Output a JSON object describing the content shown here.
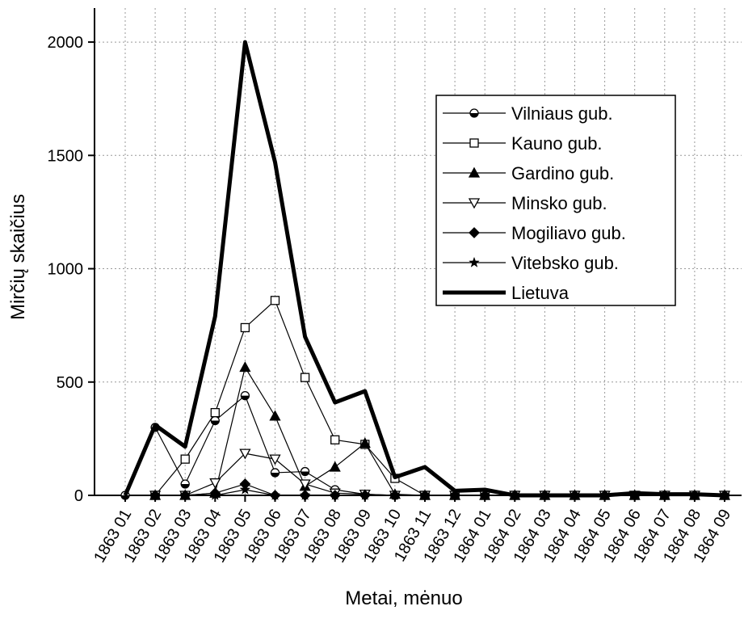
{
  "chart_data": {
    "type": "line",
    "x_label": "Metai, mėnuo",
    "y_label": "Mirčių skaičius",
    "categories": [
      "1863 01",
      "1863 02",
      "1863 03",
      "1863 04",
      "1863 05",
      "1863 06",
      "1863 07",
      "1863 08",
      "1863 09",
      "1863 10",
      "1863 11",
      "1863 12",
      "1864 01",
      "1864 02",
      "1864 03",
      "1864 04",
      "1864 05",
      "1864 06",
      "1864 07",
      "1864 08",
      "1864 09"
    ],
    "series": [
      {
        "name": "Vilniaus gub.",
        "color": "#000000",
        "marker": "half-circle",
        "values": [
          0,
          300,
          50,
          330,
          440,
          100,
          105,
          25,
          5,
          0,
          0,
          0,
          0,
          0,
          0,
          0,
          0,
          0,
          0,
          0,
          0
        ]
      },
      {
        "name": "Kauno gub.",
        "color": "#000000",
        "marker": "square",
        "values": [
          null,
          0,
          160,
          365,
          740,
          860,
          520,
          245,
          225,
          75,
          0,
          0,
          0,
          0,
          0,
          0,
          0,
          0,
          0,
          0,
          0
        ]
      },
      {
        "name": "Gardino gub.",
        "color": "#000000",
        "marker": "triangle",
        "values": [
          null,
          0,
          0,
          10,
          565,
          350,
          40,
          125,
          230,
          5,
          0,
          0,
          0,
          0,
          0,
          0,
          0,
          0,
          0,
          0,
          0
        ]
      },
      {
        "name": "Minsko gub.",
        "color": "#000000",
        "marker": "triangle-down",
        "values": [
          null,
          0,
          0,
          55,
          185,
          160,
          50,
          10,
          5,
          0,
          0,
          0,
          0,
          0,
          0,
          0,
          0,
          0,
          0,
          0,
          0
        ]
      },
      {
        "name": "Mogiliavo gub.",
        "color": "#000000",
        "marker": "diamond",
        "values": [
          null,
          0,
          0,
          10,
          50,
          0,
          0,
          0,
          0,
          0,
          0,
          0,
          0,
          0,
          0,
          0,
          0,
          0,
          0,
          0,
          0
        ]
      },
      {
        "name": "Vitebsko gub.",
        "color": "#000000",
        "marker": "star",
        "values": [
          null,
          0,
          0,
          0,
          25,
          0,
          0,
          0,
          0,
          0,
          0,
          0,
          0,
          0,
          0,
          0,
          0,
          0,
          0,
          0,
          0
        ]
      },
      {
        "name": "Lietuva",
        "color": "#000000",
        "marker": "none",
        "width": 5,
        "values": [
          0,
          310,
          215,
          790,
          2000,
          1470,
          700,
          410,
          460,
          80,
          125,
          20,
          25,
          0,
          0,
          0,
          0,
          10,
          5,
          5,
          0
        ]
      }
    ],
    "ylim": [
      0,
      2150
    ],
    "yticks": [
      0,
      500,
      1000,
      1500,
      2000
    ],
    "grid": true,
    "legend": "upper right"
  }
}
